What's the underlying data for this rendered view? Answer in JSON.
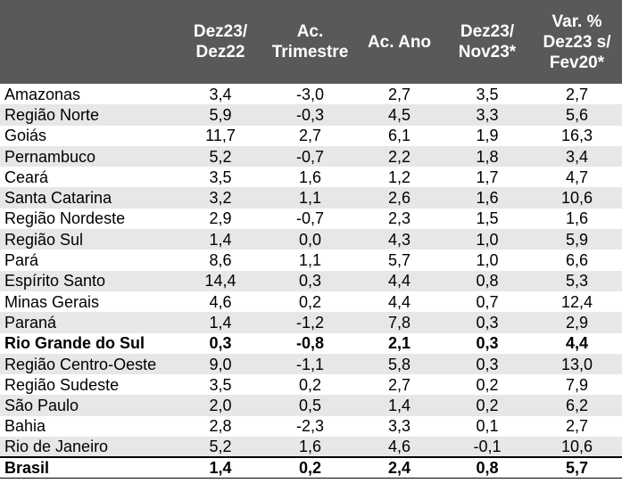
{
  "header": {
    "col_region": "",
    "col1": [
      "Dez23/",
      "Dez22"
    ],
    "col2": [
      "Ac.",
      "Trimestre"
    ],
    "col3": [
      "Ac. Ano"
    ],
    "col4": [
      "Dez23/",
      "Nov23*"
    ],
    "col5": [
      "Var. %",
      "Dez23 s/",
      "Fev20*"
    ]
  },
  "rows": [
    {
      "name": "Amazonas",
      "v": [
        "3,4",
        "-3,0",
        "2,7",
        "3,5",
        "2,7"
      ]
    },
    {
      "name": "Região Norte",
      "v": [
        "5,9",
        "-0,3",
        "4,5",
        "3,3",
        "5,6"
      ]
    },
    {
      "name": "Goiás",
      "v": [
        "11,7",
        "2,7",
        "6,1",
        "1,9",
        "16,3"
      ]
    },
    {
      "name": "Pernambuco",
      "v": [
        "5,2",
        "-0,7",
        "2,2",
        "1,8",
        "3,4"
      ]
    },
    {
      "name": "Ceará",
      "v": [
        "3,5",
        "1,6",
        "1,2",
        "1,7",
        "4,7"
      ]
    },
    {
      "name": "Santa Catarina",
      "v": [
        "3,2",
        "1,1",
        "2,6",
        "1,6",
        "10,6"
      ]
    },
    {
      "name": "Região Nordeste",
      "v": [
        "2,9",
        "-0,7",
        "2,3",
        "1,5",
        "1,6"
      ]
    },
    {
      "name": "Região Sul",
      "v": [
        "1,4",
        "0,0",
        "4,3",
        "1,0",
        "5,9"
      ]
    },
    {
      "name": "Pará",
      "v": [
        "8,6",
        "1,1",
        "5,7",
        "1,0",
        "6,6"
      ]
    },
    {
      "name": "Espírito Santo",
      "v": [
        "14,4",
        "0,3",
        "4,4",
        "0,8",
        "5,3"
      ]
    },
    {
      "name": "Minas Gerais",
      "v": [
        "4,6",
        "0,2",
        "4,4",
        "0,7",
        "12,4"
      ]
    },
    {
      "name": "Paraná",
      "v": [
        "1,4",
        "-1,2",
        "7,8",
        "0,3",
        "2,9"
      ]
    },
    {
      "name": "Rio Grande do Sul",
      "v": [
        "0,3",
        "-0,8",
        "2,1",
        "0,3",
        "4,4"
      ]
    },
    {
      "name": "Região Centro-Oeste",
      "v": [
        "9,0",
        "-1,1",
        "5,8",
        "0,3",
        "13,0"
      ]
    },
    {
      "name": "Região Sudeste",
      "v": [
        "3,5",
        "0,2",
        "2,7",
        "0,2",
        "7,9"
      ]
    },
    {
      "name": "São Paulo",
      "v": [
        "2,0",
        "0,5",
        "1,4",
        "0,2",
        "6,2"
      ]
    },
    {
      "name": "Bahia",
      "v": [
        "2,8",
        "-2,3",
        "3,3",
        "0,1",
        "2,7"
      ]
    },
    {
      "name": "Rio de Janeiro",
      "v": [
        "5,2",
        "1,6",
        "4,6",
        "-0,1",
        "10,6"
      ]
    }
  ],
  "total": {
    "name": "Brasil",
    "v": [
      "1,4",
      "0,2",
      "2,4",
      "0,8",
      "5,7"
    ]
  },
  "colors": {
    "header_bg": "#595959",
    "header_text": "#ffffff",
    "row_alt": "#e7e7e7"
  }
}
